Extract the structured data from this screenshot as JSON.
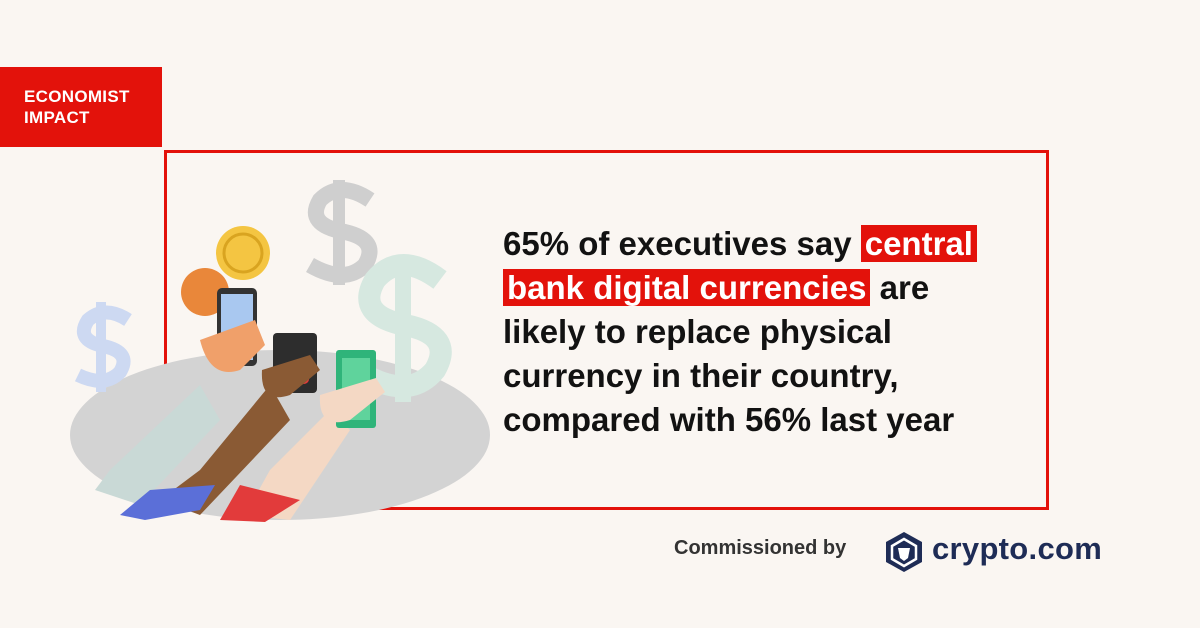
{
  "brand": {
    "lines": [
      "ECONOMIST",
      "IMPACT"
    ]
  },
  "headline": {
    "lead": "65% of executives say",
    "highlight": "central bank digital currencies",
    "rest": "are likely to replace physical currency in their country, compared with 56% last year"
  },
  "footer": {
    "label": "Commissioned by",
    "sponsor": "crypto.com"
  }
}
